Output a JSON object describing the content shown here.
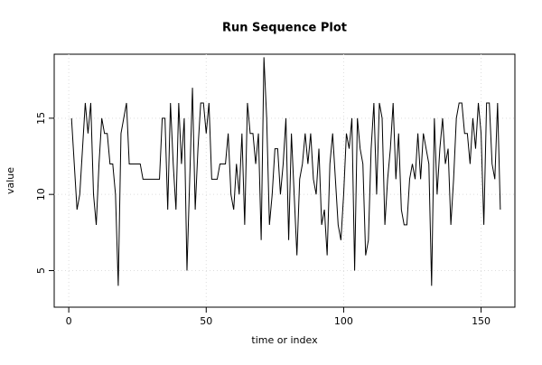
{
  "chart_data": {
    "type": "line",
    "title": "Run Sequence Plot",
    "x_label": "time or index",
    "y_label": "value",
    "x": [
      1,
      2,
      3,
      4,
      5,
      6,
      7,
      8,
      9,
      10,
      11,
      12,
      13,
      14,
      15,
      16,
      17,
      18,
      19,
      20,
      21,
      22,
      23,
      24,
      25,
      26,
      27,
      28,
      29,
      30,
      31,
      32,
      33,
      34,
      35,
      36,
      37,
      38,
      39,
      40,
      41,
      42,
      43,
      44,
      45,
      46,
      47,
      48,
      49,
      50,
      51,
      52,
      53,
      54,
      55,
      56,
      57,
      58,
      59,
      60,
      61,
      62,
      63,
      64,
      65,
      66,
      67,
      68,
      69,
      70,
      71,
      72,
      73,
      74,
      75,
      76,
      77,
      78,
      79,
      80,
      81,
      82,
      83,
      84,
      85,
      86,
      87,
      88,
      89,
      90,
      91,
      92,
      93,
      94,
      95,
      96,
      97,
      98,
      99,
      100,
      101,
      102,
      103,
      104,
      105,
      106,
      107,
      108,
      109,
      110,
      111,
      112,
      113,
      114,
      115,
      116,
      117,
      118,
      119,
      120,
      121,
      122,
      123,
      124,
      125,
      126,
      127,
      128,
      129,
      130,
      131,
      132,
      133,
      134,
      135,
      136,
      137,
      138,
      139,
      140,
      141,
      142,
      143,
      144,
      145,
      146,
      147,
      148,
      149,
      150,
      151,
      152,
      153,
      154,
      155,
      156,
      157
    ],
    "values": [
      15,
      12,
      9,
      10,
      13,
      16,
      14,
      16,
      10,
      8,
      12,
      15,
      14,
      14,
      12,
      12,
      10,
      4,
      14,
      15,
      16,
      12,
      12,
      12,
      12,
      12,
      11,
      11,
      11,
      11,
      11,
      11,
      11,
      15,
      15,
      9,
      16,
      12,
      9,
      16,
      12,
      15,
      5,
      11,
      17,
      9,
      13,
      16,
      16,
      14,
      16,
      11,
      11,
      11,
      12,
      12,
      12,
      14,
      10,
      9,
      12,
      10,
      14,
      8,
      16,
      14,
      14,
      12,
      14,
      7,
      19,
      15,
      8,
      10,
      13,
      13,
      10,
      12,
      15,
      7,
      14,
      10,
      6,
      11,
      12,
      14,
      12,
      14,
      11,
      10,
      13,
      8,
      9,
      6,
      12,
      14,
      11,
      8,
      7,
      10,
      14,
      13,
      15,
      5,
      15,
      13,
      12,
      6,
      7,
      13,
      16,
      10,
      16,
      15,
      8,
      11,
      13,
      16,
      11,
      14,
      9,
      8,
      8,
      11,
      12,
      11,
      14,
      11,
      14,
      13,
      12,
      4,
      15,
      10,
      13,
      15,
      12,
      13,
      8,
      11,
      15,
      16,
      16,
      14,
      14,
      12,
      15,
      13,
      16,
      14,
      8,
      16,
      16,
      12,
      11,
      16,
      9
    ],
    "color": "#000000",
    "xlim": [
      -5.3,
      162.3
    ],
    "ylim": [
      2.6,
      19.2
    ],
    "xticks": [
      0,
      50,
      100,
      150
    ],
    "yticks": [
      5,
      10,
      15
    ],
    "grid": true
  }
}
